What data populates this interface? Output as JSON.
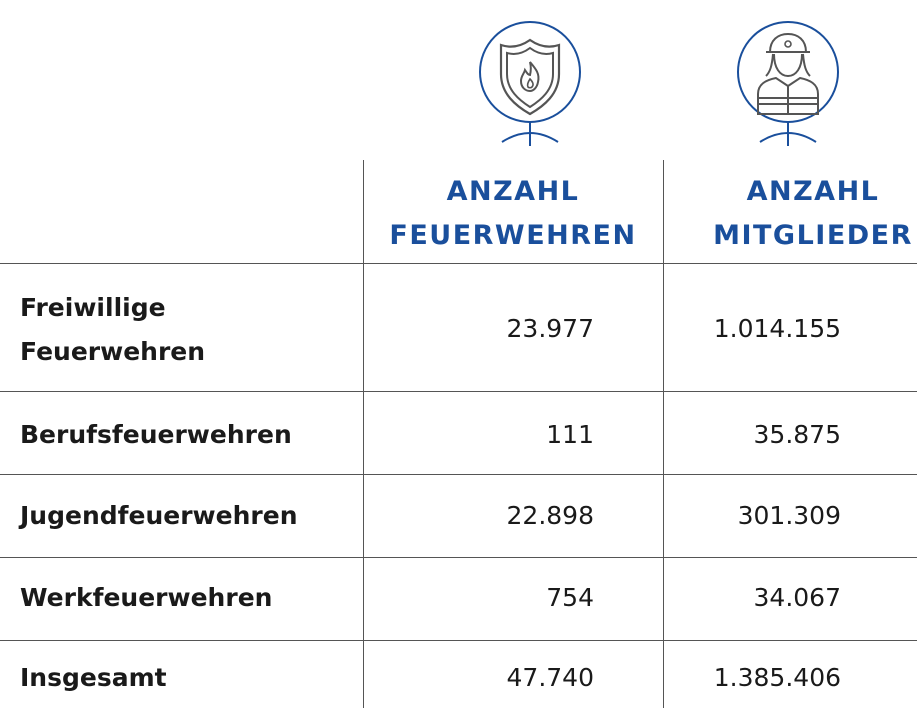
{
  "columns": [
    {
      "line1": "ANZAHL",
      "line2": "FEUERWEHREN",
      "icon": "shield-flame-icon"
    },
    {
      "line1": "ANZAHL",
      "line2": "MITGLIEDER",
      "icon": "firefighter-icon"
    }
  ],
  "rows": [
    {
      "label_line1": "Freiwillige",
      "label_line2": "Feuerwehren",
      "feuerwehren": "23.977",
      "mitglieder": "1.014.155"
    },
    {
      "label": "Berufsfeuerwehren",
      "feuerwehren": "111",
      "mitglieder": "35.875"
    },
    {
      "label": "Jugendfeuerwehren",
      "feuerwehren": "22.898",
      "mitglieder": "301.309"
    },
    {
      "label": "Werkfeuerwehren",
      "feuerwehren": "754",
      "mitglieder": "34.067"
    },
    {
      "label": "Insgesamt",
      "feuerwehren": "47.740",
      "mitglieder": "1.385.406"
    }
  ],
  "colors": {
    "accent": "#1a4f9c",
    "icon": "#555555",
    "text": "#1a1a1a"
  }
}
